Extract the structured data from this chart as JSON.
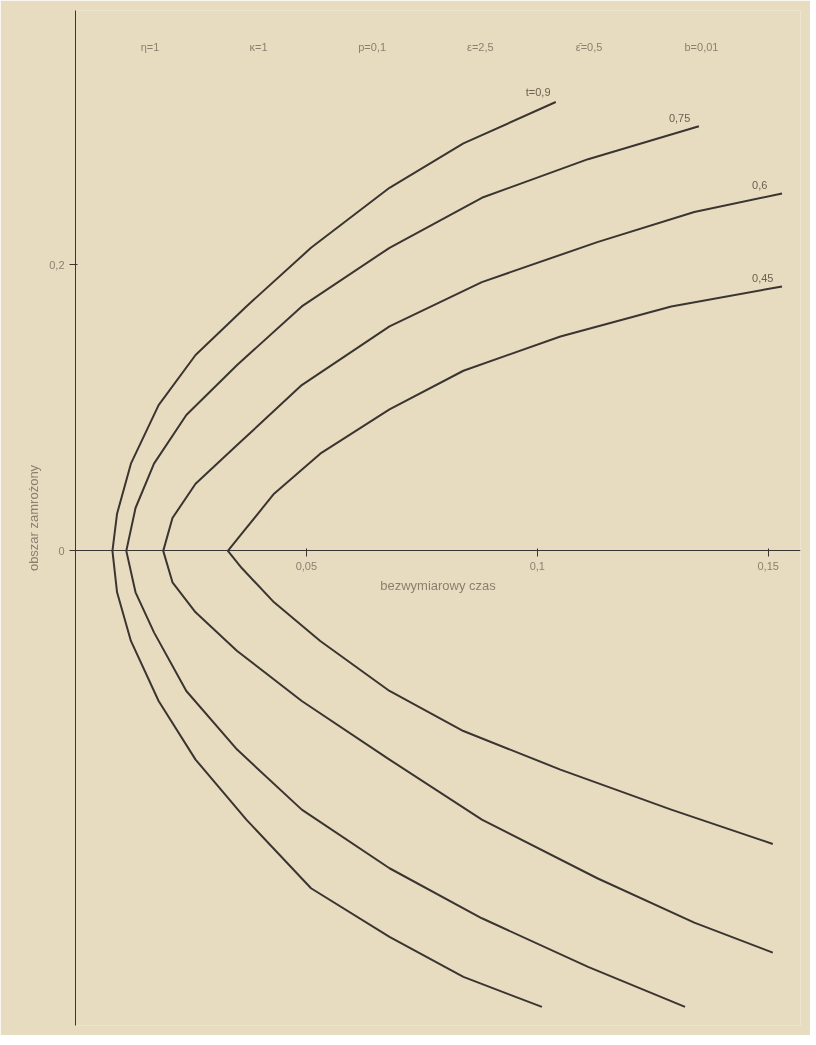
{
  "chart_data": {
    "type": "line",
    "xlabel": "bezwymiarowy czas",
    "ylabel": "obszar zamrożony",
    "annotations": [
      "η=1",
      "κ=1",
      "p=0,1",
      "ε=2,5",
      "ε̄=0,5",
      "b=0,01"
    ],
    "xlim": [
      0,
      0.157
    ],
    "ylim": [
      -0.332,
      0.378
    ],
    "xticks": [
      {
        "value": 0.05,
        "label": "0,05"
      },
      {
        "value": 0.1,
        "label": "0,1"
      },
      {
        "value": 0.15,
        "label": "0,15"
      }
    ],
    "yticks": [
      {
        "value": 0,
        "label": "0"
      },
      {
        "value": 0.2,
        "label": "0,2"
      }
    ],
    "grid": false,
    "marker": "none",
    "line_style": "solid",
    "series": [
      {
        "name": "t=0,9",
        "color": "#3a3530",
        "x": [
          0.104,
          0.084,
          0.068,
          0.051,
          0.037,
          0.026,
          0.018,
          0.012,
          0.009,
          0.008,
          0.009,
          0.012,
          0.018,
          0.026,
          0.037,
          0.051,
          0.068,
          0.084,
          0.101
        ],
        "values": [
          0.314,
          0.285,
          0.254,
          0.212,
          0.171,
          0.137,
          0.102,
          0.061,
          0.026,
          0,
          -0.029,
          -0.063,
          -0.105,
          -0.146,
          -0.188,
          -0.236,
          -0.27,
          -0.298,
          -0.319
        ]
      },
      {
        "name": "0,75",
        "color": "#3a3530",
        "x": [
          0.135,
          0.111,
          0.088,
          0.068,
          0.049,
          0.035,
          0.024,
          0.017,
          0.013,
          0.011,
          0.013,
          0.017,
          0.024,
          0.035,
          0.049,
          0.068,
          0.088,
          0.111,
          0.132
        ],
        "values": [
          0.297,
          0.274,
          0.247,
          0.212,
          0.171,
          0.13,
          0.095,
          0.061,
          0.03,
          0,
          -0.029,
          -0.057,
          -0.098,
          -0.139,
          -0.181,
          -0.222,
          -0.257,
          -0.291,
          -0.319
        ]
      },
      {
        "name": "0,6",
        "color": "#3a3530",
        "x": [
          0.153,
          0.134,
          0.113,
          0.088,
          0.068,
          0.049,
          0.035,
          0.026,
          0.021,
          0.019,
          0.021,
          0.026,
          0.035,
          0.049,
          0.068,
          0.088,
          0.113,
          0.134,
          0.151
        ],
        "values": [
          0.25,
          0.237,
          0.216,
          0.188,
          0.157,
          0.116,
          0.074,
          0.047,
          0.023,
          0,
          -0.022,
          -0.043,
          -0.07,
          -0.105,
          -0.146,
          -0.188,
          -0.229,
          -0.26,
          -0.281
        ]
      },
      {
        "name": "0,45",
        "color": "#3a3530",
        "x": [
          0.153,
          0.129,
          0.105,
          0.084,
          0.068,
          0.053,
          0.043,
          0.036,
          0.033,
          0.036,
          0.043,
          0.053,
          0.068,
          0.084,
          0.105,
          0.129,
          0.151
        ],
        "values": [
          0.185,
          0.171,
          0.15,
          0.126,
          0.099,
          0.068,
          0.04,
          0.012,
          0,
          -0.012,
          -0.036,
          -0.063,
          -0.098,
          -0.126,
          -0.153,
          -0.181,
          -0.205
        ]
      }
    ]
  }
}
